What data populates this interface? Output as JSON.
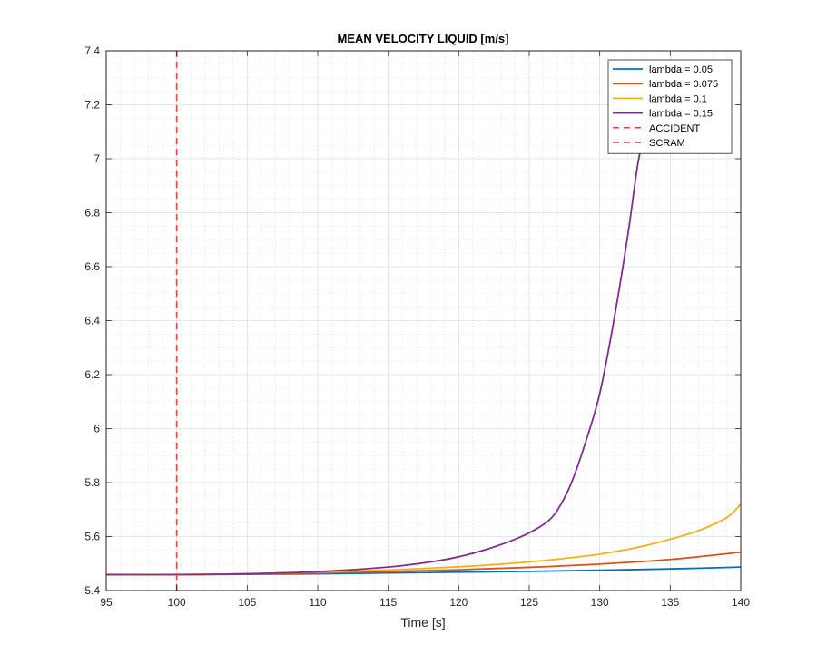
{
  "chart_data": {
    "type": "line",
    "title": "MEAN VELOCITY LIQUID [m/s]",
    "xlabel": "Time [s]",
    "ylabel": "",
    "xlim": [
      95,
      140
    ],
    "ylim": [
      5.4,
      7.4
    ],
    "xticks": [
      95,
      100,
      105,
      110,
      115,
      120,
      125,
      130,
      135,
      140
    ],
    "yticks": [
      5.4,
      5.6,
      5.8,
      6,
      6.2,
      6.4,
      6.6,
      6.8,
      7,
      7.2,
      7.4
    ],
    "xtick_labels": [
      "95",
      "100",
      "105",
      "110",
      "115",
      "120",
      "125",
      "130",
      "135",
      "140"
    ],
    "ytick_labels": [
      "5.4",
      "5.6",
      "5.8",
      "6",
      "6.2",
      "6.4",
      "6.6",
      "6.8",
      "7",
      "7.2",
      "7.4"
    ],
    "grid": true,
    "minor_grid": true,
    "legend_position": "top-right",
    "series": [
      {
        "name": "lambda = 0.05",
        "color": "#0072BD",
        "x": [
          95,
          100,
          105,
          110,
          115,
          120,
          125,
          130,
          135,
          140
        ],
        "y": [
          5.459,
          5.459,
          5.46,
          5.462,
          5.465,
          5.468,
          5.471,
          5.475,
          5.48,
          5.487
        ]
      },
      {
        "name": "lambda = 0.075",
        "color": "#D95319",
        "x": [
          95,
          100,
          105,
          110,
          115,
          120,
          125,
          130,
          135,
          140
        ],
        "y": [
          5.459,
          5.459,
          5.461,
          5.465,
          5.47,
          5.477,
          5.486,
          5.498,
          5.515,
          5.542
        ]
      },
      {
        "name": "lambda = 0.1",
        "color": "#EDB120",
        "x": [
          95,
          100,
          105,
          110,
          115,
          120,
          122.5,
          125,
          127.5,
          130,
          132.5,
          135,
          137,
          139,
          140
        ],
        "y": [
          5.459,
          5.459,
          5.462,
          5.468,
          5.476,
          5.488,
          5.496,
          5.506,
          5.519,
          5.535,
          5.558,
          5.59,
          5.622,
          5.67,
          5.72
        ]
      },
      {
        "name": "lambda = 0.15",
        "color": "#7E2F8E",
        "x": [
          95,
          100,
          105,
          110,
          115,
          118,
          120,
          122,
          124,
          125.5,
          126.5,
          127.2,
          128,
          129,
          130,
          131,
          132,
          132.7,
          133.3
        ],
        "y": [
          5.459,
          5.459,
          5.462,
          5.47,
          5.487,
          5.506,
          5.525,
          5.553,
          5.59,
          5.628,
          5.665,
          5.715,
          5.8,
          5.95,
          6.13,
          6.4,
          6.72,
          6.98,
          7.12
        ]
      },
      {
        "name": "ACCIDENT",
        "color": "#F04040",
        "style": "dashed",
        "x": [
          100,
          100
        ],
        "y": [
          5.4,
          7.4
        ]
      },
      {
        "name": "SCRAM",
        "color": "#F04040",
        "style": "dashed",
        "x": [
          100,
          100
        ],
        "y": [
          5.4,
          7.4
        ]
      }
    ]
  }
}
